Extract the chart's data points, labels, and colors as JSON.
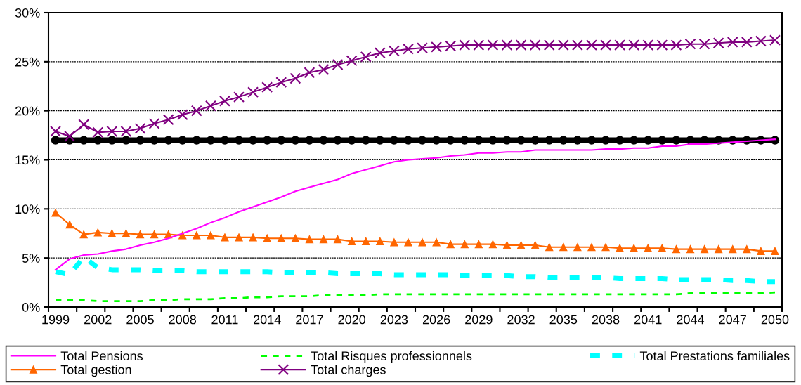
{
  "chart_data": {
    "type": "line",
    "categories": [
      "1999",
      null,
      null,
      "2002",
      null,
      null,
      "2005",
      null,
      null,
      "2008",
      null,
      null,
      "2011",
      null,
      null,
      "2014",
      null,
      null,
      "2017",
      null,
      null,
      "2020",
      null,
      null,
      "2023",
      null,
      null,
      "2026",
      null,
      null,
      "2029",
      null,
      null,
      "2032",
      null,
      null,
      "2035",
      null,
      null,
      "2038",
      null,
      null,
      "2041",
      null,
      null,
      "2044",
      null,
      null,
      "2047",
      null,
      null,
      "2050"
    ],
    "series": [
      {
        "name": "Total Pensions",
        "color": "#ff00ff",
        "line_style": "solid",
        "marker": "none",
        "values": [
          3.8,
          4.9,
          5.3,
          5.4,
          5.7,
          5.9,
          6.3,
          6.6,
          7.0,
          7.5,
          8.0,
          8.6,
          9.1,
          9.7,
          10.2,
          10.7,
          11.2,
          11.8,
          12.2,
          12.6,
          13.0,
          13.6,
          14.0,
          14.4,
          14.8,
          15.0,
          15.1,
          15.2,
          15.4,
          15.5,
          15.7,
          15.7,
          15.8,
          15.8,
          16.0,
          16.0,
          16.0,
          16.0,
          16.0,
          16.1,
          16.1,
          16.2,
          16.2,
          16.4,
          16.4,
          16.6,
          16.6,
          16.7,
          16.8,
          16.9,
          17.0,
          17.1
        ]
      },
      {
        "name": "Total Risques professionnels",
        "color": "#00ff00",
        "line_style": "dashed",
        "marker": "none",
        "values": [
          0.7,
          0.7,
          0.7,
          0.6,
          0.6,
          0.6,
          0.6,
          0.7,
          0.7,
          0.8,
          0.8,
          0.8,
          0.9,
          0.9,
          1.0,
          1.0,
          1.1,
          1.1,
          1.1,
          1.2,
          1.2,
          1.2,
          1.2,
          1.3,
          1.3,
          1.3,
          1.3,
          1.3,
          1.3,
          1.3,
          1.3,
          1.3,
          1.3,
          1.3,
          1.3,
          1.3,
          1.3,
          1.3,
          1.3,
          1.3,
          1.3,
          1.3,
          1.3,
          1.3,
          1.3,
          1.4,
          1.4,
          1.4,
          1.4,
          1.4,
          1.4,
          1.5
        ]
      },
      {
        "name": "Total Prestations familiales",
        "color": "#00ffff",
        "line_style": "dashed",
        "marker": "none",
        "values": [
          3.6,
          3.3,
          5.1,
          4.0,
          3.8,
          3.8,
          3.8,
          3.7,
          3.7,
          3.7,
          3.6,
          3.6,
          3.6,
          3.6,
          3.6,
          3.6,
          3.5,
          3.5,
          3.5,
          3.5,
          3.4,
          3.4,
          3.4,
          3.4,
          3.3,
          3.3,
          3.3,
          3.3,
          3.3,
          3.2,
          3.2,
          3.2,
          3.2,
          3.1,
          3.1,
          3.0,
          3.0,
          3.0,
          3.0,
          3.0,
          2.9,
          2.9,
          2.9,
          2.9,
          2.8,
          2.8,
          2.8,
          2.8,
          2.7,
          2.7,
          2.6,
          2.6
        ]
      },
      {
        "name": "Total gestion",
        "color": "#ff6600",
        "line_style": "solid",
        "marker": "triangle",
        "values": [
          9.6,
          8.4,
          7.4,
          7.6,
          7.5,
          7.5,
          7.4,
          7.4,
          7.4,
          7.3,
          7.3,
          7.3,
          7.1,
          7.1,
          7.1,
          7.0,
          7.0,
          7.0,
          6.9,
          6.9,
          6.9,
          6.7,
          6.7,
          6.7,
          6.6,
          6.6,
          6.6,
          6.6,
          6.4,
          6.4,
          6.4,
          6.4,
          6.3,
          6.3,
          6.3,
          6.1,
          6.1,
          6.1,
          6.1,
          6.1,
          6.0,
          6.0,
          6.0,
          6.0,
          5.9,
          5.9,
          5.9,
          5.9,
          5.9,
          5.9,
          5.7,
          5.7
        ]
      },
      {
        "name": "Total charges",
        "color": "#800080",
        "line_style": "solid",
        "marker": "cross",
        "values": [
          17.9,
          17.4,
          18.6,
          17.8,
          17.9,
          17.9,
          18.2,
          18.7,
          19.1,
          19.6,
          20.0,
          20.5,
          21.0,
          21.4,
          21.9,
          22.4,
          22.9,
          23.3,
          23.9,
          24.2,
          24.7,
          25.1,
          25.5,
          25.9,
          26.1,
          26.3,
          26.4,
          26.5,
          26.6,
          26.7,
          26.7,
          26.7,
          26.7,
          26.7,
          26.7,
          26.7,
          26.7,
          26.7,
          26.7,
          26.7,
          26.7,
          26.7,
          26.7,
          26.7,
          26.7,
          26.8,
          26.8,
          26.9,
          27.0,
          27.0,
          27.1,
          27.2
        ]
      },
      {
        "color": "#000000",
        "line_style": "solid",
        "marker": "circle",
        "values": [
          17,
          17,
          17,
          17,
          17,
          17,
          17,
          17,
          17,
          17,
          17,
          17,
          17,
          17,
          17,
          17,
          17,
          17,
          17,
          17,
          17,
          17,
          17,
          17,
          17,
          17,
          17,
          17,
          17,
          17,
          17,
          17,
          17,
          17,
          17,
          17,
          17,
          17,
          17,
          17,
          17,
          17,
          17,
          17,
          17,
          17,
          17,
          17,
          17,
          17,
          17,
          17
        ]
      }
    ],
    "ylim": [
      0,
      30
    ],
    "yticks": [
      {
        "value": 0,
        "label": "0%"
      },
      {
        "value": 5,
        "label": "5%"
      },
      {
        "value": 10,
        "label": "10%"
      },
      {
        "value": 15,
        "label": "15%"
      },
      {
        "value": 20,
        "label": "20%"
      },
      {
        "value": 25,
        "label": "25%"
      },
      {
        "value": 30,
        "label": "30%"
      }
    ],
    "grid": "y",
    "legend": "bottom"
  }
}
